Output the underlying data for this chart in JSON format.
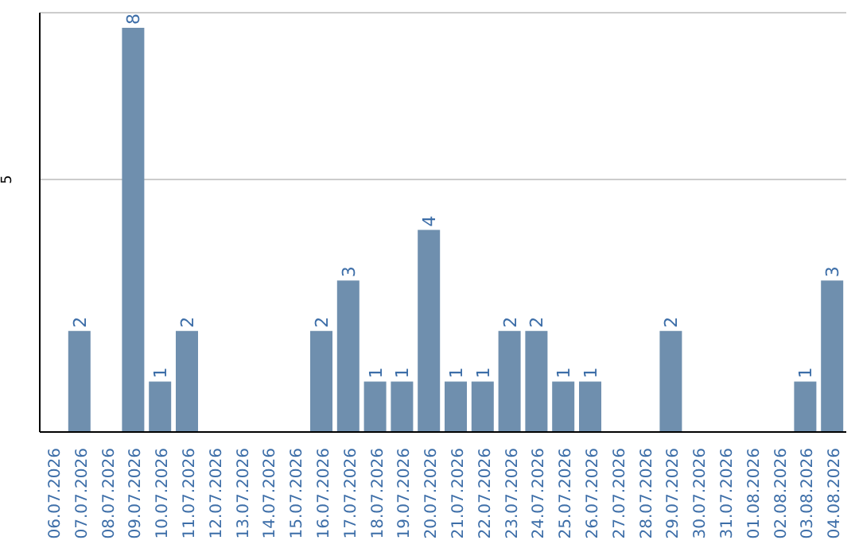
{
  "chart_data": {
    "type": "bar",
    "categories": [
      "06.07.2026",
      "07.07.2026",
      "08.07.2026",
      "09.07.2026",
      "10.07.2026",
      "11.07.2026",
      "12.07.2026",
      "13.07.2026",
      "14.07.2026",
      "15.07.2026",
      "16.07.2026",
      "17.07.2026",
      "18.07.2026",
      "19.07.2026",
      "20.07.2026",
      "21.07.2026",
      "22.07.2026",
      "23.07.2026",
      "24.07.2026",
      "25.07.2026",
      "26.07.2026",
      "27.07.2026",
      "28.07.2026",
      "29.07.2026",
      "30.07.2026",
      "31.07.2026",
      "01.08.2026",
      "02.08.2026",
      "03.08.2026",
      "04.08.2026"
    ],
    "values": [
      0,
      2,
      0,
      8,
      1,
      2,
      0,
      0,
      0,
      0,
      2,
      3,
      1,
      1,
      4,
      1,
      1,
      2,
      2,
      1,
      1,
      0,
      0,
      2,
      0,
      0,
      0,
      0,
      1,
      3
    ],
    "value_labels": [
      null,
      "2",
      null,
      "8",
      "1",
      "2",
      null,
      null,
      null,
      null,
      "2",
      "3",
      "1",
      "1",
      "4",
      "1",
      "1",
      "2",
      "2",
      "1",
      "1",
      null,
      null,
      "2",
      null,
      null,
      null,
      null,
      "1",
      "3"
    ],
    "color": "#6f8fae",
    "ylim": [
      0,
      8.3
    ],
    "yticks": [
      5
    ],
    "grid": "y"
  }
}
